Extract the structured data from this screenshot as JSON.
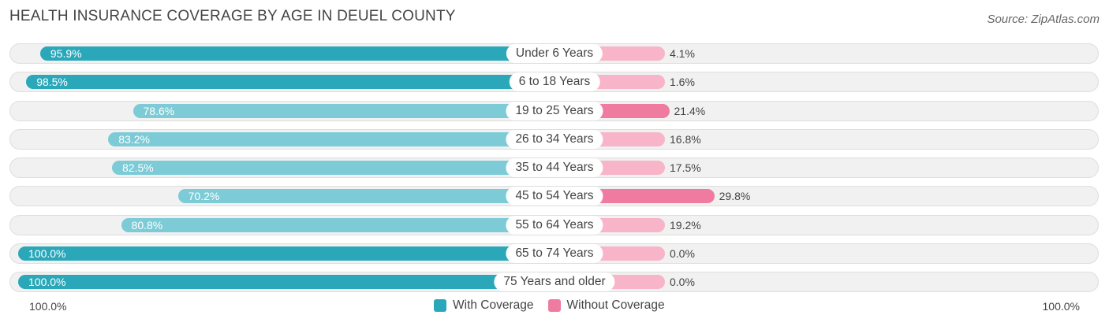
{
  "header": {
    "title": "HEALTH INSURANCE COVERAGE BY AGE IN DEUEL COUNTY",
    "source": "Source: ZipAtlas.com"
  },
  "colors": {
    "with_strong": "#2aa8ba",
    "with_light": "#7ccbd6",
    "without_strong": "#f07ba0",
    "without_light": "#f8b4c8"
  },
  "axis": {
    "left_label": "100.0%",
    "right_label": "100.0%"
  },
  "chart_data": {
    "type": "bar",
    "title": "HEALTH INSURANCE COVERAGE BY AGE IN DEUEL COUNTY",
    "categories": [
      "Under 6 Years",
      "6 to 18 Years",
      "19 to 25 Years",
      "26 to 34 Years",
      "35 to 44 Years",
      "45 to 54 Years",
      "55 to 64 Years",
      "65 to 74 Years",
      "75 Years and older"
    ],
    "series": [
      {
        "name": "With Coverage",
        "values": [
          95.9,
          98.5,
          78.6,
          83.2,
          82.5,
          70.2,
          80.8,
          100.0,
          100.0
        ],
        "labels": [
          "95.9%",
          "98.5%",
          "78.6%",
          "83.2%",
          "82.5%",
          "70.2%",
          "80.8%",
          "100.0%",
          "100.0%"
        ]
      },
      {
        "name": "Without Coverage",
        "values": [
          4.1,
          1.6,
          21.4,
          16.8,
          17.5,
          29.8,
          19.2,
          0.0,
          0.0
        ],
        "labels": [
          "4.1%",
          "1.6%",
          "21.4%",
          "16.8%",
          "17.5%",
          "29.8%",
          "19.2%",
          "0.0%",
          "0.0%"
        ]
      }
    ],
    "xlim": [
      0,
      100
    ],
    "legend": [
      "With Coverage",
      "Without Coverage"
    ],
    "legend_position": "bottom-center"
  }
}
